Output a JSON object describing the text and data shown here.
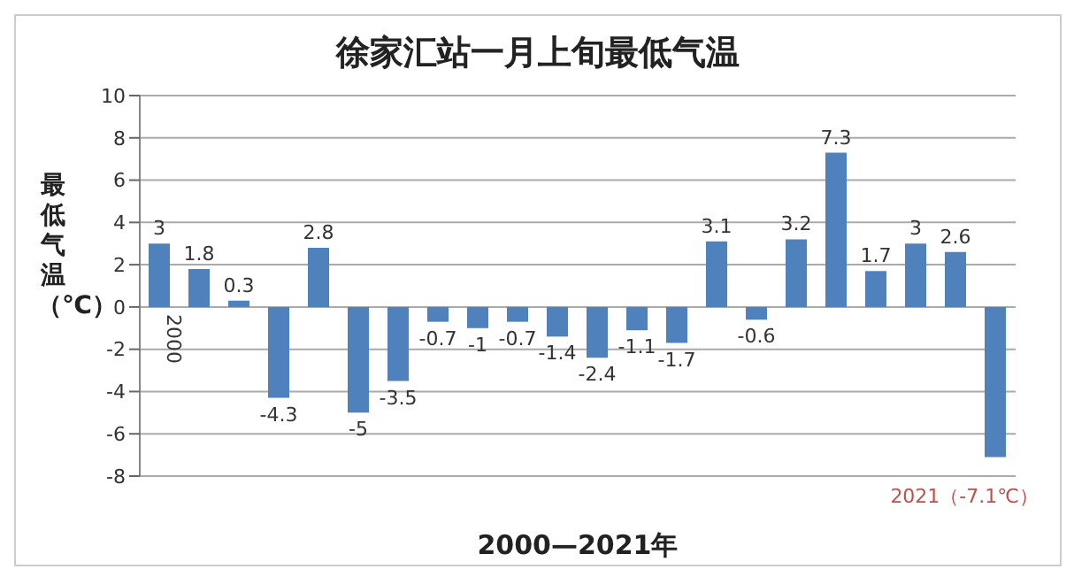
{
  "chart_data": {
    "type": "bar",
    "title": "徐家汇站一月上旬最低气温",
    "xlabel": "2000—2021年",
    "ylabel": "最低气温（℃）",
    "categories": [
      "2000",
      null,
      null,
      null,
      null,
      null,
      null,
      null,
      null,
      null,
      null,
      null,
      null,
      null,
      null,
      null,
      null,
      null,
      null,
      null,
      null,
      null
    ],
    "values": [
      3,
      1.8,
      0.3,
      -4.3,
      2.8,
      -5,
      -3.5,
      -0.7,
      -1,
      -0.7,
      -1.4,
      -2.4,
      -1.1,
      -1.7,
      3.1,
      -0.6,
      3.2,
      7.3,
      1.7,
      3,
      2.6,
      -7.1
    ],
    "value_labels": [
      "3",
      "1.8",
      "0.3",
      "-4.3",
      "2.8",
      "-5",
      "-3.5",
      "-0.7",
      "-1",
      "-0.7",
      "-1.4",
      "-2.4",
      "-1.1",
      "-1.7",
      "3.1",
      "-0.6",
      "3.2",
      "7.3",
      "1.7",
      "3",
      "2.6",
      null
    ],
    "color": "#4f81bd",
    "ylim": [
      -8,
      10
    ],
    "yticks": [
      -8,
      -6,
      -4,
      -2,
      0,
      2,
      4,
      6,
      8,
      10
    ],
    "grid": "y",
    "annotations": [
      "2021（-7.1℃）"
    ]
  }
}
